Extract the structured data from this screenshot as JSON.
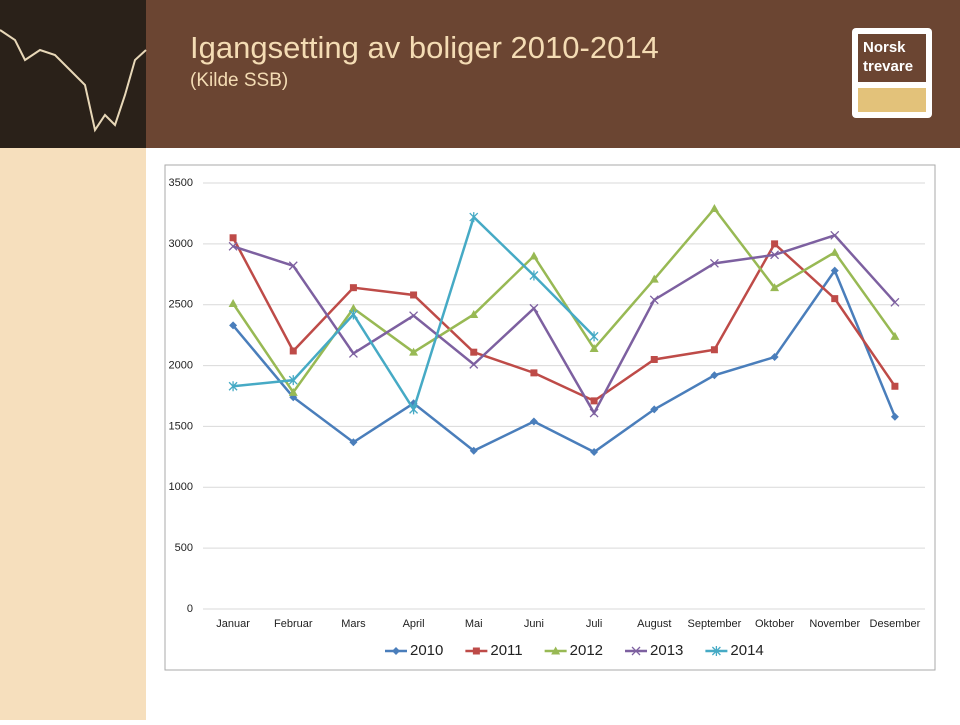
{
  "header": {
    "title": "Igangsetting av boliger 2010-2014",
    "subtitle": "(Kilde SSB)",
    "logo": [
      "Norsk",
      "trevare"
    ]
  },
  "chart_data": {
    "type": "line",
    "categories": [
      "Januar",
      "Februar",
      "Mars",
      "April",
      "Mai",
      "Juni",
      "Juli",
      "August",
      "September",
      "Oktober",
      "November",
      "Desember"
    ],
    "series": [
      {
        "name": "2010",
        "color": "#4a7ebb",
        "marker": "diamond",
        "values": [
          2330,
          1740,
          1370,
          1690,
          1300,
          1540,
          1290,
          1640,
          1920,
          2070,
          2780,
          1580
        ]
      },
      {
        "name": "2011",
        "color": "#be4b48",
        "marker": "square",
        "values": [
          3050,
          2120,
          2640,
          2580,
          2110,
          1940,
          1710,
          2050,
          2130,
          3000,
          2550,
          1830
        ]
      },
      {
        "name": "2012",
        "color": "#98b954",
        "marker": "triangle",
        "values": [
          2510,
          1780,
          2470,
          2110,
          2420,
          2900,
          2140,
          2710,
          3290,
          2640,
          2930,
          2240
        ]
      },
      {
        "name": "2013",
        "color": "#7d60a0",
        "marker": "x",
        "values": [
          2980,
          2820,
          2100,
          2410,
          2010,
          2470,
          1610,
          2540,
          2840,
          2910,
          3070,
          2520
        ]
      },
      {
        "name": "2014",
        "color": "#46aac5",
        "marker": "star",
        "values": [
          1830,
          1880,
          2420,
          1640,
          3220,
          2740,
          2240,
          null,
          null,
          null,
          null,
          null
        ]
      }
    ],
    "ylim": [
      0,
      3500
    ],
    "yticks": [
      0,
      500,
      1000,
      1500,
      2000,
      2500,
      3000,
      3500
    ],
    "grid": true,
    "legend": "bottom"
  }
}
